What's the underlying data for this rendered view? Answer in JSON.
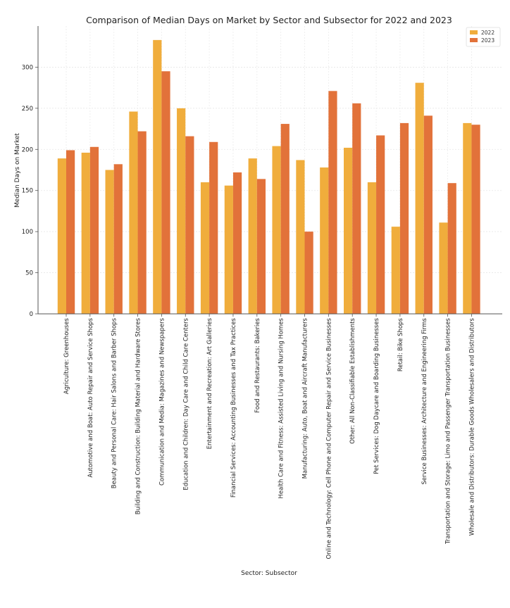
{
  "chart_data": {
    "type": "bar",
    "title": "Comparison of Median Days on Market by Sector and Subsector for 2022 and 2023",
    "xlabel": "Sector: Subsector",
    "ylabel": "Median Days on Market",
    "ylim": [
      0,
      350
    ],
    "yticks": [
      0,
      50,
      100,
      150,
      200,
      250,
      300
    ],
    "grid": true,
    "legend_position": "top-right",
    "categories": [
      "Agriculture: Greenhouses",
      "Automotive and Boat: Auto Repair and Service Shops",
      "Beauty and Personal Care: Hair Salons and Barber Shops",
      "Building and Construction: Building Material and Hardware Stores",
      "Communication and Media: Magazines and Newspapers",
      "Education and Children: Day Care and Child Care Centers",
      "Entertainment and Recreation: Art Galleries",
      "Financial Services: Accounting Businesses and Tax Practices",
      "Food and Restaurants: Bakeries",
      "Health Care and Fitness: Assisted Living and Nursing Homes",
      "Manufacturing: Auto, Boat and Aircraft Manufacturers",
      "Online and Technology: Cell Phone and Computer Repair and Service Businesses",
      "Other: All Non-Classifiable Establishments",
      "Pet Services: Dog Daycare and Boarding Businesses",
      "Retail: Bike Shops",
      "Service Businesses: Architecture and Engineering Firms",
      "Transportation and Storage: Limo and Passenger Transportation Businesses",
      "Wholesale and Distributors: Durable Goods Wholesalers and Distributors"
    ],
    "series": [
      {
        "name": "2022",
        "color": "#f0ad3c",
        "values": [
          189,
          196,
          175,
          246,
          333,
          250,
          160,
          156,
          189,
          204,
          187,
          178,
          202,
          160,
          106,
          281,
          111,
          232
        ]
      },
      {
        "name": "2023",
        "color": "#e2723a",
        "values": [
          199,
          203,
          182,
          222,
          295,
          216,
          209,
          172,
          164,
          231,
          100,
          271,
          256,
          217,
          232,
          241,
          159,
          230
        ]
      }
    ]
  }
}
